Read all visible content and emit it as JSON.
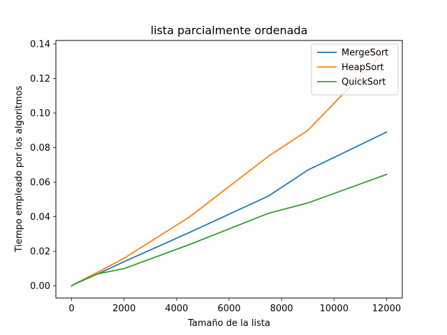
{
  "chart_data": {
    "type": "line",
    "title": "lista parcialmente ordenada",
    "xlabel": "Tamaño de la lista",
    "ylabel": "Tiempo empleado por los algoritmos",
    "xlim": [
      -600,
      12600
    ],
    "ylim": [
      -0.007,
      0.142
    ],
    "xticks": [
      0,
      2000,
      4000,
      6000,
      8000,
      10000,
      12000
    ],
    "xtick_labels": [
      "0",
      "2000",
      "4000",
      "6000",
      "8000",
      "10000",
      "12000"
    ],
    "yticks": [
      0.0,
      0.02,
      0.04,
      0.06,
      0.08,
      0.1,
      0.12,
      0.14
    ],
    "ytick_labels": [
      "0.00",
      "0.02",
      "0.04",
      "0.06",
      "0.08",
      "0.10",
      "0.12",
      "0.14"
    ],
    "grid": false,
    "legend_position": "top-right",
    "series": [
      {
        "name": "MergeSort",
        "color": "#1f77b4",
        "x": [
          0,
          100,
          1000,
          2000,
          4500,
          7500,
          9000,
          12000
        ],
        "y": [
          0.0,
          0.001,
          0.007,
          0.014,
          0.031,
          0.052,
          0.067,
          0.089
        ]
      },
      {
        "name": "HeapSort",
        "color": "#ff7f0e",
        "x": [
          0,
          100,
          1000,
          2000,
          4500,
          7500,
          9000,
          12000
        ],
        "y": [
          0.0,
          0.001,
          0.008,
          0.016,
          0.04,
          0.075,
          0.09,
          0.137
        ]
      },
      {
        "name": "QuickSort",
        "color": "#2ca02c",
        "x": [
          0,
          100,
          1000,
          2000,
          4500,
          7500,
          9000,
          12000
        ],
        "y": [
          0.0,
          0.001,
          0.007,
          0.01,
          0.024,
          0.042,
          0.048,
          0.0645
        ]
      }
    ]
  }
}
